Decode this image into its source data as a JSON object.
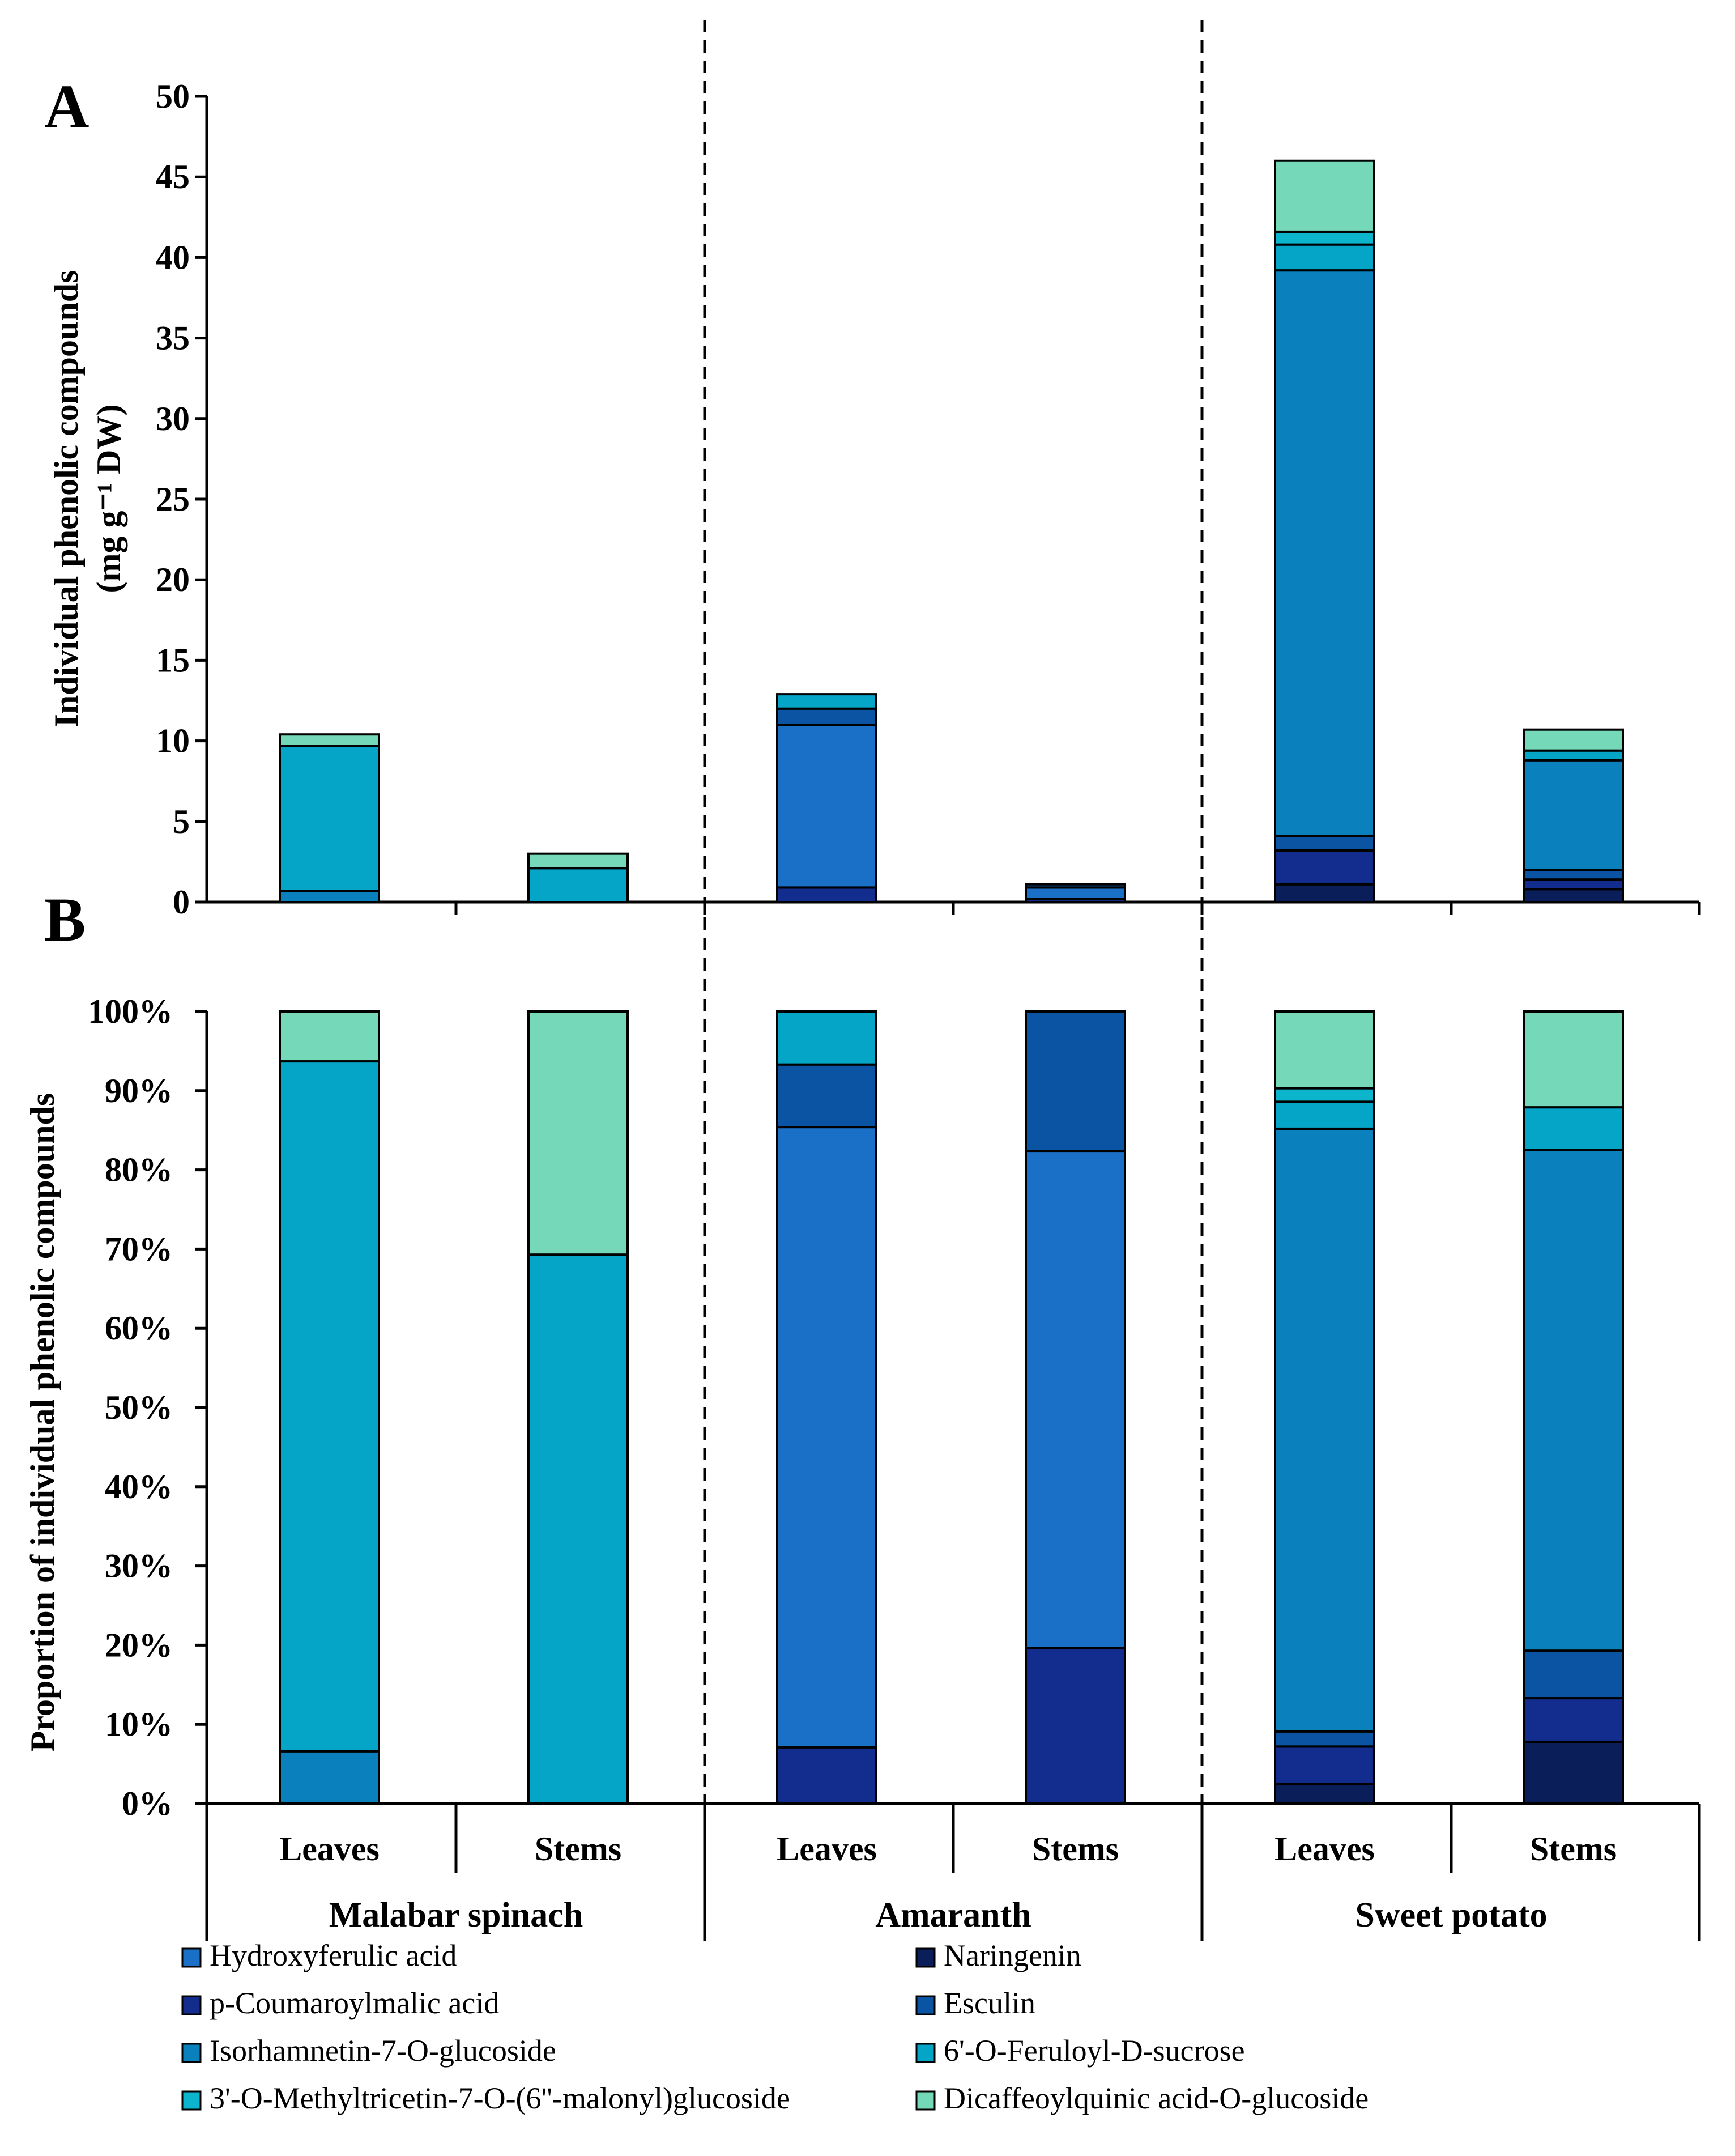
{
  "chart_data": [
    {
      "panel": "A",
      "type": "bar",
      "stacked": true,
      "ylabel_line1": "Individual phenolic compounds",
      "ylabel_line2": "(mg g⁻¹ DW)",
      "ylim": [
        0,
        50
      ],
      "yticks": [
        0,
        5,
        10,
        15,
        20,
        25,
        30,
        35,
        40,
        45,
        50
      ],
      "ytick_labels": [
        "0",
        "5",
        "10",
        "15",
        "20",
        "25",
        "30",
        "35",
        "40",
        "45",
        "50"
      ],
      "categories": [
        "Leaves",
        "Stems",
        "Leaves",
        "Stems",
        "Leaves",
        "Stems"
      ],
      "series": [
        {
          "name": "Naringenin",
          "values": [
            0,
            0,
            0,
            0,
            1.1,
            0.8
          ]
        },
        {
          "name": "p-Coumaroylmalic acid",
          "values": [
            0,
            0,
            0.9,
            0.2,
            2.1,
            0.6
          ]
        },
        {
          "name": "Hydroxyferulic acid",
          "values": [
            0,
            0,
            10.1,
            0.7,
            0,
            0
          ]
        },
        {
          "name": "Esculin",
          "values": [
            0,
            0,
            1.0,
            0.2,
            0.9,
            0.6
          ]
        },
        {
          "name": "Isorhamnetin-7-O-glucoside",
          "values": [
            0.7,
            0,
            0,
            0,
            35.1,
            6.8
          ]
        },
        {
          "name": "6'-O-Feruloyl-D-sucrose",
          "values": [
            9.0,
            2.1,
            0.9,
            0,
            1.6,
            0.6
          ]
        },
        {
          "name": "3'-O-Methyltricetin-7-O-(6''-malonyl)glucoside",
          "values": [
            0,
            0,
            0,
            0,
            0.8,
            0
          ]
        },
        {
          "name": "Dicaffeoylquinic acid-O-glucoside",
          "values": [
            0.7,
            0.9,
            0,
            0,
            4.4,
            1.3
          ]
        }
      ]
    },
    {
      "panel": "B",
      "type": "bar",
      "stacked": true,
      "percent": true,
      "ylabel": "Proportion of individual phenolic compounds",
      "ylim": [
        0,
        100
      ],
      "yticks": [
        0,
        10,
        20,
        30,
        40,
        50,
        60,
        70,
        80,
        90,
        100
      ],
      "ytick_labels": [
        "0%",
        "10%",
        "20%",
        "30%",
        "40%",
        "50%",
        "60%",
        "70%",
        "80%",
        "90%",
        "100%"
      ],
      "categories": [
        "Leaves",
        "Stems",
        "Leaves",
        "Stems",
        "Leaves",
        "Stems"
      ],
      "series": [
        {
          "name": "Naringenin",
          "values": [
            0,
            0,
            0,
            0,
            2.5,
            7.8
          ]
        },
        {
          "name": "p-Coumaroylmalic acid",
          "values": [
            0,
            0,
            7.1,
            19.6,
            4.7,
            5.5
          ]
        },
        {
          "name": "Hydroxyferulic acid",
          "values": [
            0,
            0,
            78.3,
            62.8,
            0,
            0
          ]
        },
        {
          "name": "Esculin",
          "values": [
            0,
            0,
            7.9,
            17.6,
            1.9,
            6.0
          ]
        },
        {
          "name": "Isorhamnetin-7-O-glucoside",
          "values": [
            6.6,
            0,
            0,
            0,
            76.1,
            63.2
          ]
        },
        {
          "name": "6'-O-Feruloyl-D-sucrose",
          "values": [
            87.1,
            69.3,
            6.7,
            0,
            3.4,
            5.4
          ]
        },
        {
          "name": "3'-O-Methyltricetin-7-O-(6''-malonyl)glucoside",
          "values": [
            0,
            0,
            0,
            0,
            1.7,
            0
          ]
        },
        {
          "name": "Dicaffeoylquinic acid-O-glucoside",
          "values": [
            6.3,
            30.7,
            0,
            0,
            9.7,
            12.1
          ]
        }
      ]
    }
  ],
  "panel_labels": {
    "a": "A",
    "b": "B"
  },
  "groups": [
    "Malabar spinach",
    "Amaranth",
    "Sweet potato"
  ],
  "colors": {
    "Hydroxyferulic acid": "#1a6fc6",
    "Naringenin": "#0a1e5a",
    "p-Coumaroylmalic acid": "#122d8e",
    "Esculin": "#0b54a4",
    "Isorhamnetin-7-O-glucoside": "#0a80bd",
    "6'-O-Feruloyl-D-sucrose": "#04a5c7",
    "3'-O-Methyltricetin-7-O-(6''-malonyl)glucoside": "#0cb5cc",
    "Dicaffeoylquinic acid-O-glucoside": "#74d8b9"
  },
  "legend": [
    "Hydroxyferulic acid",
    "Naringenin",
    "p-Coumaroylmalic acid",
    "Esculin",
    "Isorhamnetin-7-O-glucoside",
    "6'-O-Feruloyl-D-sucrose",
    "3'-O-Methyltricetin-7-O-(6''-malonyl)glucoside",
    "Dicaffeoylquinic acid-O-glucoside"
  ]
}
